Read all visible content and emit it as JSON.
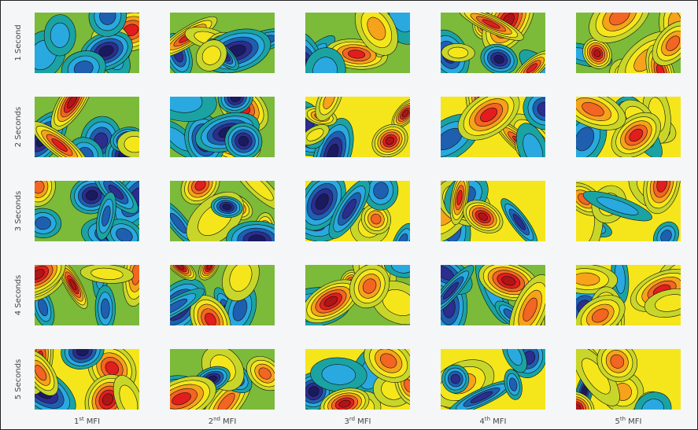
{
  "rows": [
    "1 Second",
    "2 Seconds",
    "3 Seconds",
    "4 Seconds",
    "5 Seconds"
  ],
  "columns": [
    {
      "number": "1",
      "suffix": "st",
      "unit": "MFI"
    },
    {
      "number": "2",
      "suffix": "nd",
      "unit": "MFI"
    },
    {
      "number": "3",
      "suffix": "rd",
      "unit": "MFI"
    },
    {
      "number": "4",
      "suffix": "th",
      "unit": "MFI"
    },
    {
      "number": "5",
      "suffix": "th",
      "unit": "MFI"
    }
  ]
}
